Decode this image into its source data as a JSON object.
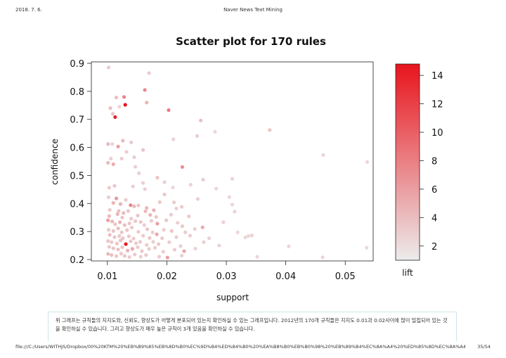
{
  "header": {
    "date": "2018. 7. 6.",
    "title": "Naver News Text Mining"
  },
  "caption": "위 그래프는 규칙들의 지지도와, 신뢰도, 향상도가 어떻게 분포되어 있는지 확인하실 수 있는 그래프입니다. 2012년의 170개 규칙들은 지지도 0.01과 0.02사이에 많이 밀집되어 있는 것을 확인하실 수 있습니다. 그리고 향상도가 매우 높은 규칙이 3개 있음을 확인하실 수 있습니다.",
  "footer": {
    "url": "file:///C:/Users/WITHJS/Dropbox/00%20KTM%20%EB%B9%85%EB%8D%B0%EC%9D%B4%ED%84%B0%20%EA%B8%B0%EB%B0%98%20%EB%89%B4%EC%8A%A4%20%ED%85%8D%EC%8A%A4%ED%8A%B8%20%EB%A7%88%EC%9D%B4%EB%8B%9D/...",
    "page": "35/54"
  },
  "chart_data": {
    "type": "scatter",
    "title": "Scatter plot for 170 rules",
    "xlabel": "support",
    "ylabel": "confidence",
    "color_label": "lift",
    "xlim": [
      0.0073,
      0.0547
    ],
    "ylim": [
      0.195,
      0.905
    ],
    "xticks": [
      0.01,
      0.02,
      0.03,
      0.04,
      0.05
    ],
    "xtick_labels": [
      "0.01",
      "0.02",
      "0.03",
      "0.04",
      "0.05"
    ],
    "yticks": [
      0.2,
      0.3,
      0.4,
      0.5,
      0.6,
      0.7,
      0.8,
      0.9
    ],
    "ytick_labels": [
      "0.2",
      "0.3",
      "0.4",
      "0.5",
      "0.6",
      "0.7",
      "0.8",
      "0.9"
    ],
    "color_range": [
      1.0,
      14.8
    ],
    "color_ticks": [
      2,
      4,
      6,
      8,
      10,
      12,
      14
    ],
    "color_tick_labels": [
      "2",
      "4",
      "6",
      "8",
      "10",
      "12",
      "14"
    ],
    "colors": {
      "low": "#ececec",
      "high": "#e8141c"
    },
    "points": [
      [
        0.0102,
        0.885,
        1.6
      ],
      [
        0.017,
        0.865,
        1.6
      ],
      [
        0.0128,
        0.78,
        5.0
      ],
      [
        0.0115,
        0.778,
        2.0
      ],
      [
        0.013,
        0.752,
        14.8
      ],
      [
        0.012,
        0.745,
        1.3
      ],
      [
        0.0163,
        0.805,
        4.6
      ],
      [
        0.0166,
        0.76,
        2.4
      ],
      [
        0.0105,
        0.74,
        2.0
      ],
      [
        0.0113,
        0.708,
        13.2
      ],
      [
        0.0109,
        0.72,
        1.8
      ],
      [
        0.0203,
        0.733,
        5.6
      ],
      [
        0.0257,
        0.696,
        2.0
      ],
      [
        0.0281,
        0.656,
        1.3
      ],
      [
        0.0373,
        0.662,
        1.8
      ],
      [
        0.0101,
        0.612,
        2.2
      ],
      [
        0.0108,
        0.612,
        1.4
      ],
      [
        0.0118,
        0.603,
        3.6
      ],
      [
        0.0126,
        0.624,
        2.2
      ],
      [
        0.014,
        0.618,
        1.6
      ],
      [
        0.016,
        0.591,
        1.8
      ],
      [
        0.0211,
        0.629,
        1.4
      ],
      [
        0.0251,
        0.641,
        1.5
      ],
      [
        0.0463,
        0.573,
        1.3
      ],
      [
        0.0106,
        0.56,
        1.5
      ],
      [
        0.0124,
        0.56,
        1.6
      ],
      [
        0.0145,
        0.565,
        1.5
      ],
      [
        0.0132,
        0.584,
        1.5
      ],
      [
        0.0101,
        0.545,
        2.2
      ],
      [
        0.011,
        0.54,
        2.8
      ],
      [
        0.0147,
        0.531,
        1.5
      ],
      [
        0.0153,
        0.508,
        1.5
      ],
      [
        0.0184,
        0.492,
        1.8
      ],
      [
        0.0226,
        0.53,
        4.4
      ],
      [
        0.0537,
        0.548,
        1.3
      ],
      [
        0.031,
        0.488,
        1.4
      ],
      [
        0.016,
        0.473,
        1.5
      ],
      [
        0.0143,
        0.461,
        1.5
      ],
      [
        0.0196,
        0.476,
        1.5
      ],
      [
        0.0103,
        0.456,
        1.6
      ],
      [
        0.0112,
        0.463,
        1.8
      ],
      [
        0.0261,
        0.485,
        1.5
      ],
      [
        0.021,
        0.457,
        1.3
      ],
      [
        0.0163,
        0.451,
        1.5
      ],
      [
        0.0196,
        0.432,
        1.7
      ],
      [
        0.024,
        0.467,
        1.4
      ],
      [
        0.0283,
        0.453,
        1.3
      ],
      [
        0.0102,
        0.422,
        1.5
      ],
      [
        0.0115,
        0.418,
        3.8
      ],
      [
        0.0131,
        0.413,
        1.6
      ],
      [
        0.0188,
        0.405,
        1.7
      ],
      [
        0.0212,
        0.404,
        1.6
      ],
      [
        0.0252,
        0.416,
        1.5
      ],
      [
        0.0305,
        0.423,
        1.3
      ],
      [
        0.011,
        0.402,
        2.4
      ],
      [
        0.0122,
        0.398,
        2.6
      ],
      [
        0.0139,
        0.394,
        5.0
      ],
      [
        0.0145,
        0.39,
        2.2
      ],
      [
        0.0152,
        0.393,
        1.7
      ],
      [
        0.0166,
        0.384,
        2.4
      ],
      [
        0.0104,
        0.377,
        1.7
      ],
      [
        0.0119,
        0.373,
        2.0
      ],
      [
        0.0127,
        0.366,
        2.2
      ],
      [
        0.0135,
        0.373,
        1.8
      ],
      [
        0.0164,
        0.372,
        2.2
      ],
      [
        0.0178,
        0.376,
        2.6
      ],
      [
        0.0216,
        0.382,
        1.5
      ],
      [
        0.0225,
        0.388,
        1.6
      ],
      [
        0.031,
        0.396,
        1.3
      ],
      [
        0.0103,
        0.355,
        2.2
      ],
      [
        0.0117,
        0.362,
        2.4
      ],
      [
        0.0125,
        0.35,
        1.8
      ],
      [
        0.014,
        0.346,
        1.7
      ],
      [
        0.0151,
        0.357,
        1.8
      ],
      [
        0.0172,
        0.359,
        2.4
      ],
      [
        0.0182,
        0.352,
        1.8
      ],
      [
        0.0207,
        0.36,
        1.6
      ],
      [
        0.0237,
        0.354,
        1.6
      ],
      [
        0.0314,
        0.371,
        1.4
      ],
      [
        0.0101,
        0.34,
        3.6
      ],
      [
        0.0108,
        0.336,
        2.4
      ],
      [
        0.0113,
        0.326,
        1.8
      ],
      [
        0.0121,
        0.333,
        2.6
      ],
      [
        0.0129,
        0.323,
        2.0
      ],
      [
        0.0137,
        0.329,
        1.8
      ],
      [
        0.0147,
        0.337,
        1.7
      ],
      [
        0.0156,
        0.334,
        1.7
      ],
      [
        0.0162,
        0.323,
        1.5
      ],
      [
        0.0174,
        0.338,
        1.6
      ],
      [
        0.0184,
        0.328,
        3.4
      ],
      [
        0.0199,
        0.34,
        1.7
      ],
      [
        0.0218,
        0.331,
        1.5
      ],
      [
        0.0226,
        0.319,
        1.7
      ],
      [
        0.026,
        0.315,
        3.0
      ],
      [
        0.0295,
        0.333,
        1.4
      ],
      [
        0.0102,
        0.306,
        1.7
      ],
      [
        0.011,
        0.302,
        1.8
      ],
      [
        0.0118,
        0.311,
        2.0
      ],
      [
        0.0124,
        0.297,
        1.8
      ],
      [
        0.0133,
        0.305,
        1.8
      ],
      [
        0.0141,
        0.314,
        1.7
      ],
      [
        0.0152,
        0.299,
        1.6
      ],
      [
        0.0167,
        0.308,
        1.8
      ],
      [
        0.0176,
        0.297,
        1.5
      ],
      [
        0.0195,
        0.306,
        1.5
      ],
      [
        0.0208,
        0.302,
        1.8
      ],
      [
        0.0231,
        0.297,
        1.6
      ],
      [
        0.0247,
        0.309,
        1.5
      ],
      [
        0.0319,
        0.297,
        1.3
      ],
      [
        0.0343,
        0.286,
        1.4
      ],
      [
        0.0104,
        0.288,
        2.0
      ],
      [
        0.0112,
        0.28,
        1.8
      ],
      [
        0.012,
        0.284,
        1.7
      ],
      [
        0.0126,
        0.276,
        1.9
      ],
      [
        0.0136,
        0.283,
        1.8
      ],
      [
        0.0144,
        0.275,
        1.6
      ],
      [
        0.016,
        0.285,
        1.6
      ],
      [
        0.0171,
        0.277,
        1.8
      ],
      [
        0.0183,
        0.29,
        3.0
      ],
      [
        0.0192,
        0.276,
        1.7
      ],
      [
        0.0216,
        0.28,
        1.6
      ],
      [
        0.0239,
        0.285,
        1.5
      ],
      [
        0.0271,
        0.276,
        1.4
      ],
      [
        0.0332,
        0.279,
        1.3
      ],
      [
        0.0337,
        0.284,
        1.3
      ],
      [
        0.0101,
        0.266,
        1.8
      ],
      [
        0.0107,
        0.262,
        1.7
      ],
      [
        0.0116,
        0.257,
        1.8
      ],
      [
        0.0122,
        0.268,
        1.9
      ],
      [
        0.0131,
        0.255,
        14.4
      ],
      [
        0.0139,
        0.265,
        1.8
      ],
      [
        0.0148,
        0.258,
        1.6
      ],
      [
        0.0155,
        0.263,
        1.7
      ],
      [
        0.0166,
        0.252,
        1.6
      ],
      [
        0.0177,
        0.263,
        1.5
      ],
      [
        0.0186,
        0.255,
        1.7
      ],
      [
        0.0204,
        0.262,
        1.6
      ],
      [
        0.0223,
        0.248,
        1.5
      ],
      [
        0.0262,
        0.262,
        1.5
      ],
      [
        0.0288,
        0.25,
        1.4
      ],
      [
        0.0405,
        0.247,
        1.3
      ],
      [
        0.0536,
        0.242,
        1.3
      ],
      [
        0.0103,
        0.245,
        1.7
      ],
      [
        0.011,
        0.24,
        1.8
      ],
      [
        0.0118,
        0.236,
        2.0
      ],
      [
        0.0125,
        0.244,
        1.7
      ],
      [
        0.0134,
        0.232,
        2.6
      ],
      [
        0.0142,
        0.238,
        3.0
      ],
      [
        0.0151,
        0.244,
        1.6
      ],
      [
        0.0158,
        0.23,
        1.7
      ],
      [
        0.017,
        0.238,
        1.6
      ],
      [
        0.018,
        0.242,
        1.6
      ],
      [
        0.0194,
        0.228,
        1.5
      ],
      [
        0.0213,
        0.235,
        1.6
      ],
      [
        0.0229,
        0.23,
        3.2
      ],
      [
        0.0248,
        0.239,
        1.4
      ],
      [
        0.0101,
        0.22,
        2.2
      ],
      [
        0.0107,
        0.216,
        2.0
      ],
      [
        0.0115,
        0.212,
        1.8
      ],
      [
        0.0123,
        0.221,
        1.7
      ],
      [
        0.0129,
        0.213,
        1.8
      ],
      [
        0.0137,
        0.209,
        1.6
      ],
      [
        0.0146,
        0.218,
        1.6
      ],
      [
        0.0156,
        0.21,
        1.5
      ],
      [
        0.0165,
        0.216,
        1.7
      ],
      [
        0.0187,
        0.21,
        1.6
      ],
      [
        0.0201,
        0.207,
        3.6
      ],
      [
        0.0225,
        0.214,
        1.5
      ],
      [
        0.0352,
        0.21,
        1.3
      ],
      [
        0.0462,
        0.208,
        1.3
      ]
    ]
  }
}
